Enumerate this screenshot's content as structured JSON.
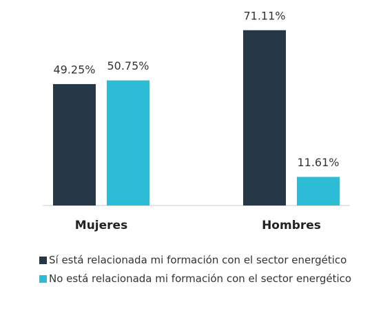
{
  "chart_data": {
    "type": "bar",
    "categories": [
      "Mujeres",
      "Hombres"
    ],
    "series": [
      {
        "name": "Sí está relacionada mi formación con el sector energético",
        "color": "#253746",
        "values": [
          49.25,
          71.11
        ],
        "value_labels": [
          "49.25%",
          "71.11%"
        ]
      },
      {
        "name": "No está relacionada mi formación con el sector energético",
        "color": "#2cbcd6",
        "values": [
          50.75,
          11.61
        ],
        "value_labels": [
          "50.75%",
          "11.61%"
        ]
      }
    ],
    "ylim": [
      0,
      80
    ]
  }
}
